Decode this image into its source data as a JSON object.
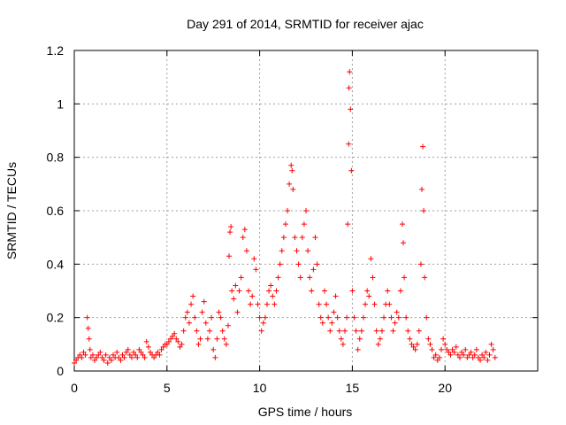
{
  "chart_data": {
    "type": "scatter",
    "title": "Day 291 of 2014, SRMTID for receiver ajac",
    "xlabel": "GPS time / hours",
    "ylabel": "SRMTID / TECUs",
    "xlim": [
      0,
      25
    ],
    "ylim": [
      0,
      1.2
    ],
    "x_ticks": [
      0,
      5,
      10,
      15,
      20
    ],
    "x_tick_labels": [
      "0",
      "5",
      "10",
      "15",
      "20"
    ],
    "y_ticks": [
      0,
      0.2,
      0.4,
      0.6,
      0.8,
      1,
      1.2
    ],
    "y_tick_labels": [
      "0",
      "0.2",
      "0.4",
      "0.6",
      "0.8",
      "1",
      "1.2"
    ],
    "grid": true,
    "marker": "plus",
    "color": "#ff0000",
    "series": [
      {
        "name": "SRMTID",
        "points": [
          [
            0.0,
            0.03
          ],
          [
            0.1,
            0.04
          ],
          [
            0.2,
            0.05
          ],
          [
            0.3,
            0.06
          ],
          [
            0.4,
            0.05
          ],
          [
            0.5,
            0.07
          ],
          [
            0.6,
            0.06
          ],
          [
            0.7,
            0.2
          ],
          [
            0.75,
            0.16
          ],
          [
            0.8,
            0.12
          ],
          [
            0.85,
            0.08
          ],
          [
            0.9,
            0.05
          ],
          [
            1.0,
            0.06
          ],
          [
            1.1,
            0.04
          ],
          [
            1.2,
            0.05
          ],
          [
            1.3,
            0.06
          ],
          [
            1.4,
            0.07
          ],
          [
            1.5,
            0.05
          ],
          [
            1.6,
            0.04
          ],
          [
            1.7,
            0.06
          ],
          [
            1.8,
            0.03
          ],
          [
            1.9,
            0.05
          ],
          [
            2.0,
            0.04
          ],
          [
            2.1,
            0.06
          ],
          [
            2.2,
            0.05
          ],
          [
            2.3,
            0.07
          ],
          [
            2.4,
            0.05
          ],
          [
            2.5,
            0.04
          ],
          [
            2.6,
            0.06
          ],
          [
            2.7,
            0.05
          ],
          [
            2.8,
            0.07
          ],
          [
            2.9,
            0.08
          ],
          [
            3.0,
            0.06
          ],
          [
            3.1,
            0.05
          ],
          [
            3.2,
            0.07
          ],
          [
            3.3,
            0.06
          ],
          [
            3.4,
            0.05
          ],
          [
            3.5,
            0.08
          ],
          [
            3.6,
            0.07
          ],
          [
            3.7,
            0.06
          ],
          [
            3.8,
            0.05
          ],
          [
            3.9,
            0.11
          ],
          [
            4.0,
            0.09
          ],
          [
            4.1,
            0.07
          ],
          [
            4.2,
            0.06
          ],
          [
            4.3,
            0.05
          ],
          [
            4.4,
            0.06
          ],
          [
            4.5,
            0.07
          ],
          [
            4.6,
            0.06
          ],
          [
            4.7,
            0.08
          ],
          [
            4.8,
            0.09
          ],
          [
            4.9,
            0.1
          ],
          [
            5.0,
            0.1
          ],
          [
            5.1,
            0.11
          ],
          [
            5.2,
            0.12
          ],
          [
            5.3,
            0.13
          ],
          [
            5.4,
            0.14
          ],
          [
            5.5,
            0.12
          ],
          [
            5.6,
            0.11
          ],
          [
            5.7,
            0.09
          ],
          [
            5.8,
            0.1
          ],
          [
            5.9,
            0.15
          ],
          [
            6.0,
            0.2
          ],
          [
            6.1,
            0.22
          ],
          [
            6.2,
            0.18
          ],
          [
            6.3,
            0.25
          ],
          [
            6.4,
            0.28
          ],
          [
            6.5,
            0.2
          ],
          [
            6.6,
            0.15
          ],
          [
            6.7,
            0.1
          ],
          [
            6.8,
            0.12
          ],
          [
            6.9,
            0.22
          ],
          [
            7.0,
            0.26
          ],
          [
            7.1,
            0.18
          ],
          [
            7.2,
            0.12
          ],
          [
            7.3,
            0.15
          ],
          [
            7.4,
            0.2
          ],
          [
            7.5,
            0.08
          ],
          [
            7.6,
            0.05
          ],
          [
            7.7,
            0.12
          ],
          [
            7.8,
            0.22
          ],
          [
            7.9,
            0.2
          ],
          [
            8.0,
            0.15
          ],
          [
            8.1,
            0.12
          ],
          [
            8.2,
            0.1
          ],
          [
            8.3,
            0.17
          ],
          [
            8.35,
            0.43
          ],
          [
            8.4,
            0.52
          ],
          [
            8.45,
            0.54
          ],
          [
            8.5,
            0.3
          ],
          [
            8.6,
            0.27
          ],
          [
            8.7,
            0.32
          ],
          [
            8.8,
            0.22
          ],
          [
            8.9,
            0.3
          ],
          [
            9.0,
            0.35
          ],
          [
            9.1,
            0.5
          ],
          [
            9.2,
            0.53
          ],
          [
            9.3,
            0.45
          ],
          [
            9.4,
            0.3
          ],
          [
            9.5,
            0.25
          ],
          [
            9.6,
            0.28
          ],
          [
            9.7,
            0.42
          ],
          [
            9.8,
            0.38
          ],
          [
            9.9,
            0.25
          ],
          [
            10.0,
            0.2
          ],
          [
            10.1,
            0.15
          ],
          [
            10.2,
            0.18
          ],
          [
            10.3,
            0.2
          ],
          [
            10.4,
            0.25
          ],
          [
            10.5,
            0.3
          ],
          [
            10.6,
            0.32
          ],
          [
            10.7,
            0.28
          ],
          [
            10.8,
            0.25
          ],
          [
            10.9,
            0.3
          ],
          [
            11.0,
            0.35
          ],
          [
            11.1,
            0.4
          ],
          [
            11.2,
            0.45
          ],
          [
            11.3,
            0.5
          ],
          [
            11.4,
            0.55
          ],
          [
            11.5,
            0.6
          ],
          [
            11.6,
            0.7
          ],
          [
            11.7,
            0.77
          ],
          [
            11.75,
            0.75
          ],
          [
            11.8,
            0.68
          ],
          [
            11.9,
            0.5
          ],
          [
            12.0,
            0.45
          ],
          [
            12.1,
            0.4
          ],
          [
            12.2,
            0.35
          ],
          [
            12.3,
            0.5
          ],
          [
            12.4,
            0.55
          ],
          [
            12.5,
            0.6
          ],
          [
            12.6,
            0.45
          ],
          [
            12.7,
            0.35
          ],
          [
            12.8,
            0.3
          ],
          [
            12.9,
            0.38
          ],
          [
            13.0,
            0.5
          ],
          [
            13.1,
            0.4
          ],
          [
            13.2,
            0.25
          ],
          [
            13.3,
            0.2
          ],
          [
            13.4,
            0.18
          ],
          [
            13.5,
            0.3
          ],
          [
            13.6,
            0.25
          ],
          [
            13.7,
            0.2
          ],
          [
            13.8,
            0.15
          ],
          [
            13.9,
            0.18
          ],
          [
            14.0,
            0.22
          ],
          [
            14.1,
            0.28
          ],
          [
            14.2,
            0.2
          ],
          [
            14.3,
            0.15
          ],
          [
            14.4,
            0.12
          ],
          [
            14.5,
            0.1
          ],
          [
            14.6,
            0.15
          ],
          [
            14.7,
            0.2
          ],
          [
            14.75,
            0.55
          ],
          [
            14.8,
            0.85
          ],
          [
            14.82,
            1.06
          ],
          [
            14.85,
            1.12
          ],
          [
            14.9,
            0.98
          ],
          [
            14.95,
            0.75
          ],
          [
            15.0,
            0.3
          ],
          [
            15.1,
            0.2
          ],
          [
            15.2,
            0.15
          ],
          [
            15.3,
            0.08
          ],
          [
            15.4,
            0.12
          ],
          [
            15.5,
            0.15
          ],
          [
            15.6,
            0.2
          ],
          [
            15.7,
            0.25
          ],
          [
            15.8,
            0.3
          ],
          [
            15.9,
            0.28
          ],
          [
            16.0,
            0.42
          ],
          [
            16.1,
            0.35
          ],
          [
            16.2,
            0.25
          ],
          [
            16.3,
            0.15
          ],
          [
            16.4,
            0.1
          ],
          [
            16.5,
            0.12
          ],
          [
            16.6,
            0.15
          ],
          [
            16.7,
            0.2
          ],
          [
            16.8,
            0.25
          ],
          [
            16.9,
            0.3
          ],
          [
            17.0,
            0.25
          ],
          [
            17.1,
            0.2
          ],
          [
            17.2,
            0.15
          ],
          [
            17.3,
            0.18
          ],
          [
            17.4,
            0.22
          ],
          [
            17.5,
            0.2
          ],
          [
            17.6,
            0.3
          ],
          [
            17.7,
            0.55
          ],
          [
            17.75,
            0.48
          ],
          [
            17.8,
            0.35
          ],
          [
            17.9,
            0.2
          ],
          [
            18.0,
            0.15
          ],
          [
            18.1,
            0.12
          ],
          [
            18.2,
            0.1
          ],
          [
            18.3,
            0.09
          ],
          [
            18.4,
            0.08
          ],
          [
            18.5,
            0.1
          ],
          [
            18.6,
            0.15
          ],
          [
            18.7,
            0.4
          ],
          [
            18.75,
            0.68
          ],
          [
            18.8,
            0.84
          ],
          [
            18.85,
            0.6
          ],
          [
            18.9,
            0.35
          ],
          [
            19.0,
            0.2
          ],
          [
            19.1,
            0.12
          ],
          [
            19.2,
            0.1
          ],
          [
            19.3,
            0.08
          ],
          [
            19.4,
            0.05
          ],
          [
            19.5,
            0.06
          ],
          [
            19.6,
            0.04
          ],
          [
            19.7,
            0.05
          ],
          [
            19.8,
            0.08
          ],
          [
            19.9,
            0.12
          ],
          [
            20.0,
            0.1
          ],
          [
            20.1,
            0.08
          ],
          [
            20.2,
            0.07
          ],
          [
            20.3,
            0.06
          ],
          [
            20.4,
            0.08
          ],
          [
            20.5,
            0.07
          ],
          [
            20.6,
            0.09
          ],
          [
            20.7,
            0.06
          ],
          [
            20.8,
            0.05
          ],
          [
            20.9,
            0.07
          ],
          [
            21.0,
            0.06
          ],
          [
            21.1,
            0.08
          ],
          [
            21.2,
            0.05
          ],
          [
            21.3,
            0.06
          ],
          [
            21.4,
            0.07
          ],
          [
            21.5,
            0.05
          ],
          [
            21.6,
            0.06
          ],
          [
            21.7,
            0.08
          ],
          [
            21.8,
            0.05
          ],
          [
            21.9,
            0.04
          ],
          [
            22.0,
            0.06
          ],
          [
            22.1,
            0.05
          ],
          [
            22.2,
            0.07
          ],
          [
            22.3,
            0.04
          ],
          [
            22.4,
            0.06
          ],
          [
            22.5,
            0.1
          ],
          [
            22.6,
            0.08
          ],
          [
            22.7,
            0.05
          ]
        ]
      }
    ]
  }
}
